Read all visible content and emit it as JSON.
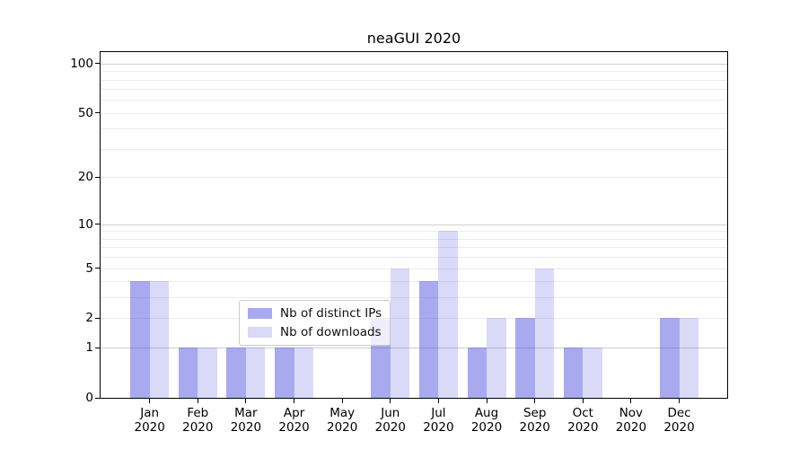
{
  "title": "neaGUI 2020",
  "chart_data": {
    "type": "bar",
    "title": "neaGUI 2020",
    "categories": [
      "Jan 2020",
      "Feb 2020",
      "Mar 2020",
      "Apr 2020",
      "May 2020",
      "Jun 2020",
      "Jul 2020",
      "Aug 2020",
      "Sep 2020",
      "Oct 2020",
      "Nov 2020",
      "Dec 2020"
    ],
    "series": [
      {
        "name": "Nb of distinct IPs",
        "values": [
          4,
          1,
          1,
          1,
          0,
          2,
          4,
          1,
          2,
          1,
          0,
          2
        ],
        "fill": "rgba(65,65,220,0.45)",
        "swatch": "#a9a9f0"
      },
      {
        "name": "Nb of downloads",
        "values": [
          4,
          1,
          1,
          1,
          0,
          5,
          9,
          2,
          5,
          1,
          0,
          2
        ],
        "fill": "rgba(65,65,220,0.2)",
        "swatch": "#d9d9f8"
      }
    ],
    "y_axis": {
      "scale": "log1p",
      "ticks": [
        0,
        1,
        2,
        5,
        10,
        20,
        50,
        100
      ],
      "tick_labels": [
        "0",
        "1",
        "2",
        "5",
        "10",
        "20",
        "50",
        "100"
      ],
      "minor_gridlines": [
        2,
        3,
        4,
        5,
        6,
        7,
        8,
        9,
        20,
        30,
        40,
        50,
        60,
        70,
        80,
        90
      ],
      "major_gridlines": [
        1,
        10,
        100
      ],
      "range": [
        0,
        117
      ],
      "grid_minor_color": "#ececec",
      "grid_major_color": "#cfcfcf"
    },
    "xlabel": "",
    "ylabel": "",
    "grid": true,
    "legend": {
      "position": "lower center",
      "items": [
        "Nb of distinct IPs",
        "Nb of downloads"
      ]
    }
  },
  "colors": {
    "axis": "#000000",
    "bar_base": "#4141dc",
    "distinct_ips_visible": "#a9a9f0",
    "downloads_visible": "#d9d9f8"
  }
}
